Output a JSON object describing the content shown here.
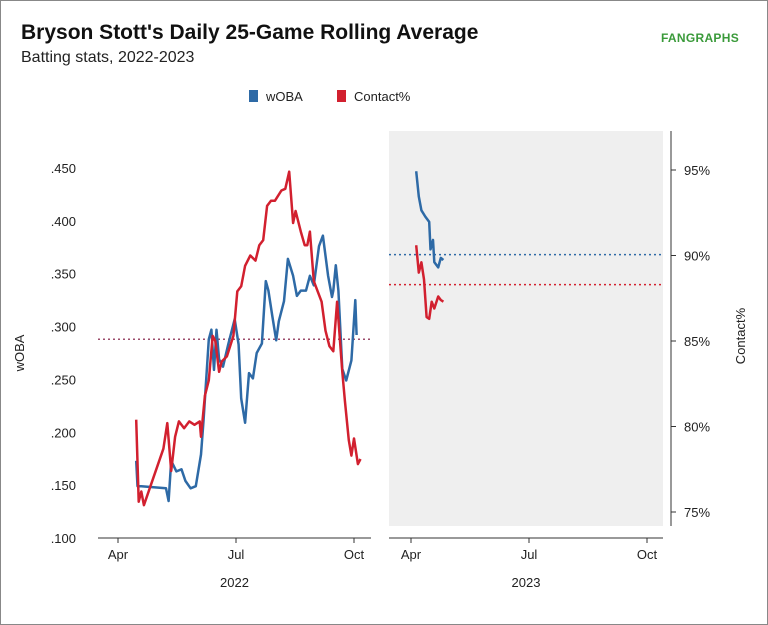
{
  "header": {
    "title": "Bryson Stott's Daily 25-Game Rolling Average",
    "subtitle": "Batting stats, 2022-2023",
    "logo": "FANGRAPHS"
  },
  "chart_data": {
    "type": "line",
    "title": "Bryson Stott's Daily 25-Game Rolling Average",
    "subtitle": "Batting stats, 2022-2023",
    "legend": {
      "position": "top",
      "entries": [
        "wOBA",
        "Contact%"
      ]
    },
    "colors": {
      "wOBA": "#2e6aa6",
      "Contact%": "#d2202f"
    },
    "y_left": {
      "label": "wOBA",
      "ticks": [
        ".100",
        ".150",
        ".200",
        ".250",
        ".300",
        ".350",
        ".400",
        ".450"
      ],
      "range": [
        0.1,
        0.45
      ]
    },
    "y_right": {
      "label": "Contact%",
      "ticks": [
        "75%",
        "80%",
        "85%",
        "90%",
        "95%"
      ],
      "range": [
        75,
        95
      ]
    },
    "panels": [
      {
        "year": "2022",
        "x_ticks": [
          "Apr",
          "Jul",
          "Oct"
        ],
        "shaded": false,
        "reference": {
          "wOBA": 0.288,
          "Contact%": 85.1
        },
        "series": [
          {
            "name": "wOBA",
            "points": [
              [
                "2022-04-15",
                0.173
              ],
              [
                "2022-04-16",
                0.149
              ],
              [
                "2022-04-19",
                0.149
              ],
              [
                "2022-05-08",
                0.147
              ],
              [
                "2022-05-10",
                0.135
              ],
              [
                "2022-05-12",
                0.173
              ],
              [
                "2022-05-16",
                0.163
              ],
              [
                "2022-05-20",
                0.165
              ],
              [
                "2022-05-23",
                0.154
              ],
              [
                "2022-05-27",
                0.147
              ],
              [
                "2022-05-31",
                0.149
              ],
              [
                "2022-06-04",
                0.179
              ],
              [
                "2022-06-06",
                0.212
              ],
              [
                "2022-06-08",
                0.25
              ],
              [
                "2022-06-10",
                0.288
              ],
              [
                "2022-06-12",
                0.297
              ],
              [
                "2022-06-14",
                0.259
              ],
              [
                "2022-06-16",
                0.297
              ],
              [
                "2022-06-18",
                0.269
              ],
              [
                "2022-06-21",
                0.262
              ],
              [
                "2022-06-25",
                0.283
              ],
              [
                "2022-06-30",
                0.307
              ],
              [
                "2022-07-03",
                0.283
              ],
              [
                "2022-07-05",
                0.232
              ],
              [
                "2022-07-08",
                0.209
              ],
              [
                "2022-07-11",
                0.256
              ],
              [
                "2022-07-14",
                0.251
              ],
              [
                "2022-07-17",
                0.275
              ],
              [
                "2022-07-21",
                0.284
              ],
              [
                "2022-07-24",
                0.343
              ],
              [
                "2022-07-26",
                0.334
              ],
              [
                "2022-07-29",
                0.31
              ],
              [
                "2022-08-01",
                0.287
              ],
              [
                "2022-08-03",
                0.305
              ],
              [
                "2022-08-07",
                0.324
              ],
              [
                "2022-08-10",
                0.364
              ],
              [
                "2022-08-14",
                0.348
              ],
              [
                "2022-08-17",
                0.329
              ],
              [
                "2022-08-20",
                0.334
              ],
              [
                "2022-08-24",
                0.334
              ],
              [
                "2022-08-27",
                0.348
              ],
              [
                "2022-08-30",
                0.339
              ],
              [
                "2022-09-03",
                0.376
              ],
              [
                "2022-09-06",
                0.386
              ],
              [
                "2022-09-10",
                0.348
              ],
              [
                "2022-09-13",
                0.328
              ],
              [
                "2022-09-14",
                0.334
              ],
              [
                "2022-09-16",
                0.358
              ],
              [
                "2022-09-18",
                0.334
              ],
              [
                "2022-09-21",
                0.26
              ],
              [
                "2022-09-24",
                0.249
              ],
              [
                "2022-09-28",
                0.268
              ],
              [
                "2022-10-01",
                0.325
              ],
              [
                "2022-10-02",
                0.292
              ]
            ]
          },
          {
            "name": "Contact%",
            "points": [
              [
                "2022-04-15",
                80.4
              ],
              [
                "2022-04-17",
                75.6
              ],
              [
                "2022-04-19",
                76.2
              ],
              [
                "2022-04-21",
                75.4
              ],
              [
                "2022-05-06",
                78.7
              ],
              [
                "2022-05-09",
                80.2
              ],
              [
                "2022-05-12",
                77.4
              ],
              [
                "2022-05-15",
                79.4
              ],
              [
                "2022-05-18",
                80.3
              ],
              [
                "2022-05-22",
                79.9
              ],
              [
                "2022-05-26",
                80.3
              ],
              [
                "2022-05-30",
                80.1
              ],
              [
                "2022-06-03",
                80.3
              ],
              [
                "2022-06-04",
                79.4
              ],
              [
                "2022-06-07",
                81.8
              ],
              [
                "2022-06-10",
                82.7
              ],
              [
                "2022-06-13",
                85.3
              ],
              [
                "2022-06-15",
                85.0
              ],
              [
                "2022-06-18",
                83.2
              ],
              [
                "2022-06-20",
                83.8
              ],
              [
                "2022-06-24",
                84.1
              ],
              [
                "2022-06-29",
                85.3
              ],
              [
                "2022-07-02",
                87.9
              ],
              [
                "2022-07-05",
                88.2
              ],
              [
                "2022-07-08",
                89.4
              ],
              [
                "2022-07-12",
                90.0
              ],
              [
                "2022-07-16",
                89.7
              ],
              [
                "2022-07-19",
                90.6
              ],
              [
                "2022-07-22",
                90.9
              ],
              [
                "2022-07-25",
                92.9
              ],
              [
                "2022-07-28",
                93.2
              ],
              [
                "2022-07-31",
                93.2
              ],
              [
                "2022-08-05",
                93.8
              ],
              [
                "2022-08-08",
                93.9
              ],
              [
                "2022-08-11",
                94.9
              ],
              [
                "2022-08-14",
                91.9
              ],
              [
                "2022-08-16",
                92.6
              ],
              [
                "2022-08-20",
                91.4
              ],
              [
                "2022-08-23",
                90.6
              ],
              [
                "2022-08-25",
                90.6
              ],
              [
                "2022-08-27",
                91.4
              ],
              [
                "2022-08-30",
                88.5
              ],
              [
                "2022-09-02",
                87.9
              ],
              [
                "2022-09-05",
                87.3
              ],
              [
                "2022-09-08",
                85.6
              ],
              [
                "2022-09-11",
                84.7
              ],
              [
                "2022-09-14",
                84.4
              ],
              [
                "2022-09-17",
                87.3
              ],
              [
                "2022-09-21",
                83.2
              ],
              [
                "2022-09-23",
                81.5
              ],
              [
                "2022-09-26",
                79.2
              ],
              [
                "2022-09-28",
                78.3
              ],
              [
                "2022-09-30",
                79.3
              ],
              [
                "2022-10-03",
                77.8
              ],
              [
                "2022-10-05",
                78.1
              ]
            ]
          }
        ]
      },
      {
        "year": "2023",
        "x_ticks": [
          "Apr",
          "Jul",
          "Oct"
        ],
        "shaded": true,
        "reference": {
          "wOBA": 0.368,
          "Contact%": 88.3
        },
        "series": [
          {
            "name": "wOBA",
            "points": [
              [
                "2023-04-05",
                0.447
              ],
              [
                "2023-04-07",
                0.423
              ],
              [
                "2023-04-09",
                0.41
              ],
              [
                "2023-04-12",
                0.404
              ],
              [
                "2023-04-15",
                0.399
              ],
              [
                "2023-04-16",
                0.373
              ],
              [
                "2023-04-18",
                0.382
              ],
              [
                "2023-04-19",
                0.361
              ],
              [
                "2023-04-22",
                0.356
              ],
              [
                "2023-04-24",
                0.365
              ],
              [
                "2023-04-26",
                0.363
              ]
            ]
          },
          {
            "name": "Contact%",
            "points": [
              [
                "2023-04-05",
                90.6
              ],
              [
                "2023-04-07",
                89.0
              ],
              [
                "2023-04-09",
                89.6
              ],
              [
                "2023-04-11",
                88.6
              ],
              [
                "2023-04-13",
                86.4
              ],
              [
                "2023-04-15",
                86.3
              ],
              [
                "2023-04-17",
                87.3
              ],
              [
                "2023-04-19",
                86.9
              ],
              [
                "2023-04-22",
                87.6
              ],
              [
                "2023-04-24",
                87.4
              ],
              [
                "2023-04-26",
                87.3
              ]
            ]
          }
        ]
      }
    ]
  }
}
